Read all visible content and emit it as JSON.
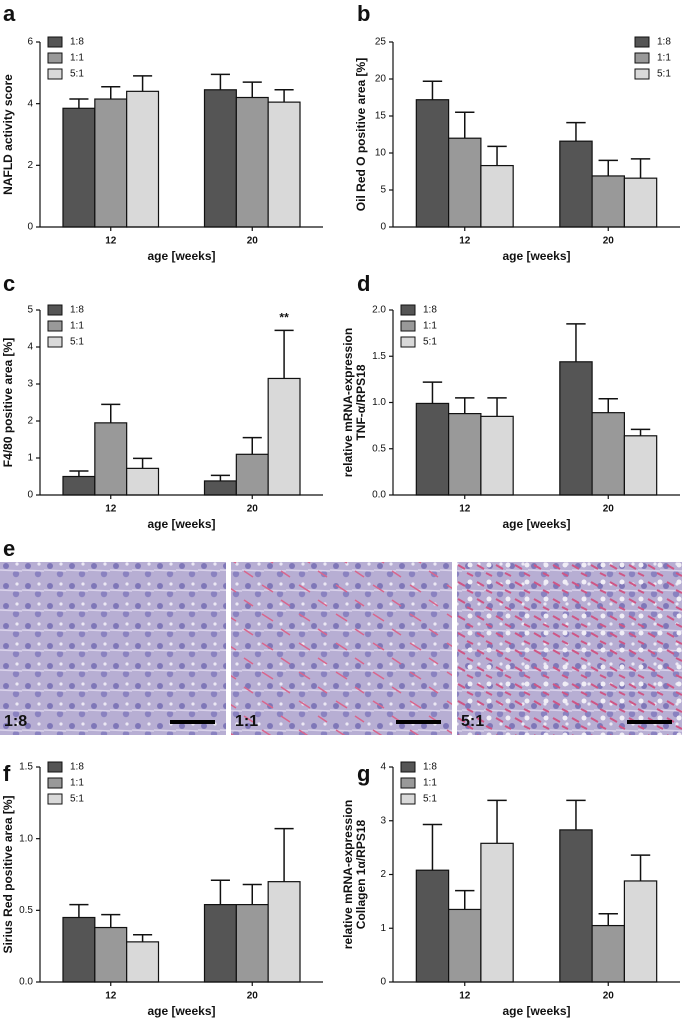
{
  "chart_data": [
    {
      "type": "bar",
      "panel": "a",
      "ylabel": [
        "NAFLD activity score"
      ],
      "xlabel": "age [weeks]",
      "categories": [
        "12",
        "20"
      ],
      "ylim": [
        0,
        6
      ],
      "yticks": [
        0,
        2,
        4,
        6
      ],
      "legend": "upper left",
      "series": [
        {
          "name": "1:8",
          "color": "#555555",
          "values": [
            3.85,
            4.45
          ],
          "errors": [
            0.3,
            0.5
          ]
        },
        {
          "name": "1:1",
          "color": "#999999",
          "values": [
            4.15,
            4.2
          ],
          "errors": [
            0.4,
            0.5
          ]
        },
        {
          "name": "5:1",
          "color": "#d9d9d9",
          "values": [
            4.4,
            4.05
          ],
          "errors": [
            0.5,
            0.4
          ]
        }
      ]
    },
    {
      "type": "bar",
      "panel": "b",
      "ylabel": [
        "Oil  Red O positive area [%]"
      ],
      "xlabel": "age [weeks]",
      "categories": [
        "12",
        "20"
      ],
      "ylim": [
        0,
        25
      ],
      "yticks": [
        0,
        5,
        10,
        15,
        20,
        25
      ],
      "legend": "upper right",
      "series": [
        {
          "name": "1:8",
          "color": "#555555",
          "values": [
            17.2,
            11.6
          ],
          "errors": [
            2.5,
            2.5
          ]
        },
        {
          "name": "1:1",
          "color": "#999999",
          "values": [
            12,
            6.9
          ],
          "errors": [
            3.5,
            2.1
          ]
        },
        {
          "name": "5:1",
          "color": "#d9d9d9",
          "values": [
            8.3,
            6.6
          ],
          "errors": [
            2.6,
            2.6
          ]
        }
      ]
    },
    {
      "type": "bar",
      "panel": "c",
      "ylabel": [
        "F4/80 positive area [%]"
      ],
      "xlabel": "age [weeks]",
      "categories": [
        "12",
        "20"
      ],
      "ylim": [
        0,
        5
      ],
      "yticks": [
        0,
        1,
        2,
        3,
        4,
        5
      ],
      "legend": "upper left",
      "annotation": "**",
      "series": [
        {
          "name": "1:8",
          "color": "#555555",
          "values": [
            0.5,
            0.38
          ],
          "errors": [
            0.15,
            0.15
          ]
        },
        {
          "name": "1:1",
          "color": "#999999",
          "values": [
            1.95,
            1.1
          ],
          "errors": [
            0.5,
            0.45
          ]
        },
        {
          "name": "5:1",
          "color": "#d9d9d9",
          "values": [
            0.72,
            3.15
          ],
          "errors": [
            0.27,
            1.3
          ]
        }
      ]
    },
    {
      "type": "bar",
      "panel": "d",
      "ylabel": [
        "relative mRNA-expression",
        "TNF-α/RPS18"
      ],
      "xlabel": "age [weeks]",
      "categories": [
        "12",
        "20"
      ],
      "ylim": [
        0,
        2
      ],
      "yticks": [
        {
          "value": 0,
          "label": "0.0"
        },
        0.5,
        {
          "value": 1,
          "label": "1.0"
        },
        1.5,
        {
          "value": 2,
          "label": "2.0"
        }
      ],
      "legend": "upper left",
      "series": [
        {
          "name": "1:8",
          "color": "#555555",
          "values": [
            0.99,
            1.44
          ],
          "errors": [
            0.23,
            0.41
          ]
        },
        {
          "name": "1:1",
          "color": "#999999",
          "values": [
            0.88,
            0.89
          ],
          "errors": [
            0.17,
            0.15
          ]
        },
        {
          "name": "5:1",
          "color": "#d9d9d9",
          "values": [
            0.85,
            0.64
          ],
          "errors": [
            0.2,
            0.07
          ]
        }
      ]
    },
    {
      "type": "bar",
      "panel": "f",
      "ylabel": [
        "Sirius Red positive area [%]"
      ],
      "xlabel": "age [weeks]",
      "categories": [
        "12",
        "20"
      ],
      "ylim": [
        0,
        1.5
      ],
      "yticks": [
        {
          "value": 0,
          "label": "0.0"
        },
        0.5,
        {
          "value": 1,
          "label": "1.0"
        },
        1.5
      ],
      "legend": "upper left",
      "series": [
        {
          "name": "1:8",
          "color": "#555555",
          "values": [
            0.45,
            0.54
          ],
          "errors": [
            0.09,
            0.17
          ]
        },
        {
          "name": "1:1",
          "color": "#999999",
          "values": [
            0.38,
            0.54
          ],
          "errors": [
            0.09,
            0.14
          ]
        },
        {
          "name": "5:1",
          "color": "#d9d9d9",
          "values": [
            0.28,
            0.7
          ],
          "errors": [
            0.05,
            0.37
          ]
        }
      ]
    },
    {
      "type": "bar",
      "panel": "g",
      "ylabel": [
        "relative mRNA-expression",
        "Collagen 1α/RPS18"
      ],
      "xlabel": "age [weeks]",
      "categories": [
        "12",
        "20"
      ],
      "ylim": [
        0,
        4
      ],
      "yticks": [
        0,
        1,
        2,
        3,
        4
      ],
      "legend": "upper left",
      "series": [
        {
          "name": "1:8",
          "color": "#555555",
          "values": [
            2.08,
            2.83
          ],
          "errors": [
            0.85,
            0.55
          ]
        },
        {
          "name": "1:1",
          "color": "#999999",
          "values": [
            1.35,
            1.05
          ],
          "errors": [
            0.35,
            0.22
          ]
        },
        {
          "name": "5:1",
          "color": "#d9d9d9",
          "values": [
            2.58,
            1.88
          ],
          "errors": [
            0.8,
            0.48
          ]
        }
      ]
    }
  ],
  "micrographs": {
    "panel": "e",
    "labels": [
      "1:8",
      "1:1",
      "5:1"
    ]
  }
}
